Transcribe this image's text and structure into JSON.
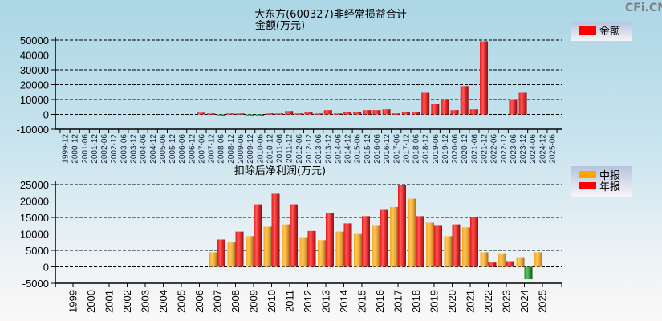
{
  "watermark": "CFi.CN",
  "colors": {
    "red": "#ff0000",
    "orange": "#ffa500",
    "green": "#2e9a3a",
    "legend_bg_top": "#b8c6df",
    "legend_bg_bottom": "#f4f2f8"
  },
  "chart_data": [
    {
      "type": "bar",
      "title": "大东方(600327)非经常损益合计",
      "ylabel": "金额(万元)",
      "xlabel": "",
      "ylim": [
        -10000,
        50000
      ],
      "yticks": [
        "50000",
        "40000",
        "30000",
        "20000",
        "10000",
        "0",
        "-10000"
      ],
      "ytick_values": [
        50000,
        40000,
        30000,
        20000,
        10000,
        0,
        -10000
      ],
      "grid": true,
      "legend_position": "top-right",
      "legend": [
        {
          "label": "金额",
          "color": "#ff0000"
        }
      ],
      "categories": [
        "1999-12",
        "2000-12",
        "2001-06",
        "2001-12",
        "2002-06",
        "2002-12",
        "2003-06",
        "2003-12",
        "2004-06",
        "2004-12",
        "2005-06",
        "2005-12",
        "2006-06",
        "2006-12",
        "2007-06",
        "2007-12",
        "2008-06",
        "2008-12",
        "2009-06",
        "2009-12",
        "2010-06",
        "2010-12",
        "2011-06",
        "2011-12",
        "2012-06",
        "2012-12",
        "2013-06",
        "2013-12",
        "2014-06",
        "2014-12",
        "2015-06",
        "2015-12",
        "2016-06",
        "2016-12",
        "2017-06",
        "2017-12",
        "2018-06",
        "2018-12",
        "2019-06",
        "2019-12",
        "2020-06",
        "2020-12",
        "2021-06",
        "2021-12",
        "2022-06",
        "2022-12",
        "2023-06",
        "2023-12",
        "2024-06",
        "2024-12",
        "2025-06"
      ],
      "series": [
        {
          "name": "金额",
          "values": [
            null,
            null,
            null,
            null,
            null,
            null,
            null,
            null,
            null,
            null,
            null,
            null,
            null,
            null,
            1200,
            700,
            -500,
            700,
            700,
            -600,
            -600,
            700,
            700,
            2300,
            700,
            1800,
            700,
            2900,
            700,
            1800,
            1800,
            2900,
            2900,
            3400,
            700,
            1700,
            1700,
            14600,
            7000,
            9800,
            2900,
            19000,
            3400,
            49200,
            null,
            null,
            10300,
            14600,
            null,
            null,
            null
          ]
        }
      ]
    },
    {
      "type": "bar",
      "title": "扣除后净利润(万元)",
      "xlabel": "",
      "ylabel": "",
      "ylim": [
        -5000,
        25000
      ],
      "yticks": [
        "25000",
        "20000",
        "15000",
        "10000",
        "5000",
        "0",
        "-5000"
      ],
      "ytick_values": [
        25000,
        20000,
        15000,
        10000,
        5000,
        0,
        -5000
      ],
      "grid": true,
      "legend_position": "top-right",
      "legend": [
        {
          "label": "中报",
          "color": "#ffa500"
        },
        {
          "label": "年报",
          "color": "#ff0000"
        }
      ],
      "categories": [
        "1999",
        "2000",
        "2001",
        "2002",
        "2003",
        "2004",
        "2005",
        "2006",
        "2007",
        "2008",
        "2009",
        "2010",
        "2011",
        "2012",
        "2013",
        "2014",
        "2015",
        "2016",
        "2017",
        "2018",
        "2019",
        "2020",
        "2021",
        "2022",
        "2023",
        "2024",
        "2025"
      ],
      "series": [
        {
          "name": "中报",
          "values": [
            null,
            null,
            null,
            null,
            null,
            null,
            null,
            null,
            4400,
            7400,
            9300,
            12200,
            12900,
            9000,
            8100,
            10700,
            10200,
            12700,
            18200,
            20700,
            13400,
            9300,
            12000,
            4400,
            4100,
            2900,
            4400
          ]
        },
        {
          "name": "年报",
          "values": [
            null,
            null,
            null,
            null,
            null,
            null,
            null,
            null,
            8300,
            10700,
            19000,
            22200,
            19000,
            10900,
            16300,
            13200,
            15400,
            17300,
            25000,
            15400,
            12700,
            12900,
            15100,
            1300,
            1700,
            -3800,
            null
          ]
        }
      ]
    }
  ]
}
